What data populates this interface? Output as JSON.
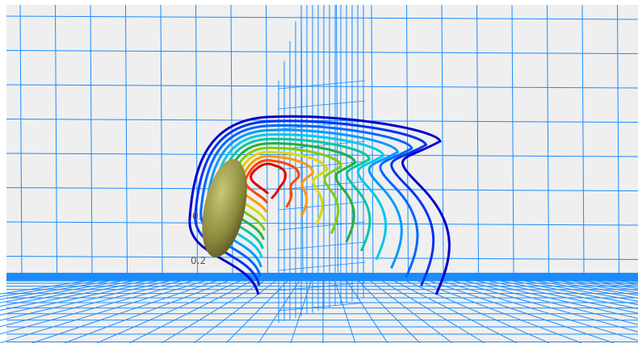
{
  "labels": [
    "0.",
    "0.2"
  ]
}
